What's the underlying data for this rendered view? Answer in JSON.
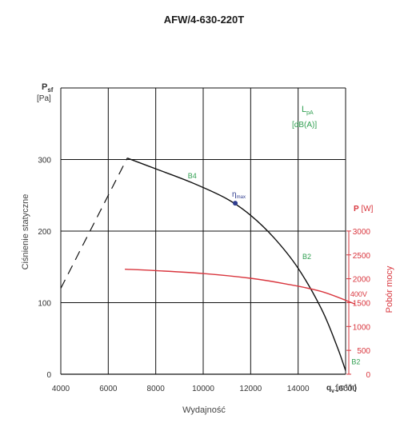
{
  "chart_data": {
    "type": "line",
    "title": "AFW/4-630-220T",
    "x_axis": {
      "label_symbol": "q",
      "label_sub": "v",
      "unit": "[m³/h]",
      "label": "Wydajność",
      "range": [
        4000,
        16000
      ],
      "ticks": [
        "4000",
        "6000",
        "8000",
        "10000",
        "12000",
        "14000",
        "16000"
      ],
      "tick_values": [
        4000,
        6000,
        8000,
        10000,
        12000,
        14000,
        16000
      ]
    },
    "y_axis": {
      "label_symbol": "P",
      "label_sub": "sf",
      "unit": "[Pa]",
      "label": "Ciśnienie statyczne",
      "range": [
        0,
        300
      ],
      "ticks": [
        "0",
        "100",
        "200",
        "300"
      ],
      "tick_values": [
        0,
        100,
        200,
        300
      ]
    },
    "y2_axis": {
      "label_symbol": "P",
      "unit": "[W]",
      "label": "Pobór mocy",
      "range": [
        0,
        3000
      ],
      "ticks": [
        "0",
        "500",
        "1000",
        "1500",
        "2000",
        "2500",
        "3000"
      ],
      "tick_values": [
        0,
        500,
        1000,
        1500,
        2000,
        2500,
        3000
      ]
    },
    "grid": true,
    "noise_label": {
      "symbol": "L",
      "sub": "pA",
      "unit": "[dB(A)]"
    },
    "pressure_curve": [
      {
        "x": 6800,
        "y": 302
      },
      {
        "x": 8000,
        "y": 287
      },
      {
        "x": 9500,
        "y": 268
      },
      {
        "x": 11000,
        "y": 245
      },
      {
        "x": 12000,
        "y": 222
      },
      {
        "x": 13000,
        "y": 190
      },
      {
        "x": 14000,
        "y": 148
      },
      {
        "x": 15000,
        "y": 90
      },
      {
        "x": 15650,
        "y": 38
      },
      {
        "x": 16000,
        "y": 5
      }
    ],
    "unstable_region": [
      {
        "x": 4000,
        "y": 120
      },
      {
        "x": 6800,
        "y": 302
      }
    ],
    "power_curve": {
      "name": "400V",
      "points": [
        {
          "x": 6700,
          "y": 2200
        },
        {
          "x": 8000,
          "y": 2170
        },
        {
          "x": 10000,
          "y": 2110
        },
        {
          "x": 12000,
          "y": 2010
        },
        {
          "x": 13500,
          "y": 1890
        },
        {
          "x": 15000,
          "y": 1730
        },
        {
          "x": 16400,
          "y": 1470
        }
      ]
    },
    "eta_max": {
      "x": 11350,
      "y": 239,
      "label_symbol": "η",
      "label_sub": "max"
    },
    "annotations": [
      {
        "text": "B4",
        "x": 9350,
        "y": 274
      },
      {
        "text": "B2",
        "x": 14180,
        "y": 161
      },
      {
        "text": "B2",
        "x": 16250,
        "y": 14
      }
    ]
  }
}
